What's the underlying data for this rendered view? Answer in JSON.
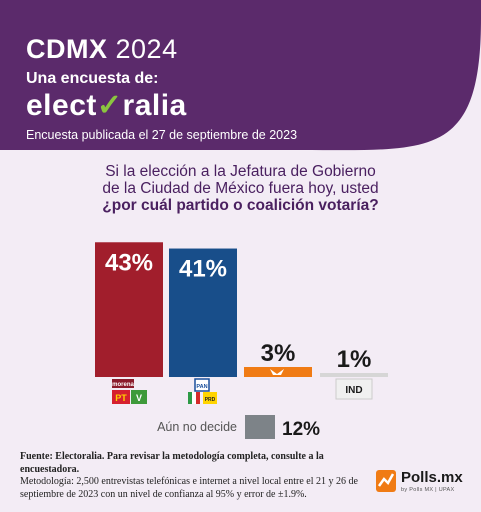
{
  "header": {
    "title": "CDMX",
    "year": "2024",
    "subtitle": "Una encuesta de:",
    "brand_pre": "elect",
    "brand_check": "✓",
    "brand_post": "ralia",
    "date": "Encuesta publicada el 27 de septiembre de 2023",
    "bg_color": "#5b2a6b"
  },
  "question": {
    "line1": "Si la elección a la Jefatura de Gobierno",
    "line2": "de la Ciudad de México fuera hoy, usted",
    "line3": "¿por cuál partido o coalición votaría?"
  },
  "chart_data": {
    "type": "bar",
    "categories": [
      "MORENA-PT-PVEM",
      "PAN-PRI-PRD",
      "MC",
      "IND"
    ],
    "values": [
      43,
      41,
      3,
      1
    ],
    "labels": [
      "43%",
      "41%",
      "3%",
      "1%"
    ],
    "colors": [
      "#a11e2c",
      "#184e8a",
      "#f07b14",
      "#d6d6d6"
    ],
    "ylim": [
      0,
      45
    ],
    "undecided": {
      "label": "Aún no decide",
      "value": 12,
      "display": "12%",
      "color": "#7d8388"
    },
    "logos": {
      "morena": "morena",
      "pt": "PT",
      "verde": "V",
      "pan": "PAN",
      "prd": "PRD",
      "ind": "IND"
    }
  },
  "footer": {
    "source": "Fuente: Electoralia. Para revisar la metodología completa, consulte a la encuestadora.",
    "methodology": "Metodología: 2,500 entrevistas telefónicas e internet a nivel local entre el 21 y 26 de septiembre de 2023 con un nivel de confianza al 95% y error de ±1.9%."
  },
  "logo": {
    "name": "Polls.mx",
    "tagline": "by Polls MX | UPAX"
  }
}
